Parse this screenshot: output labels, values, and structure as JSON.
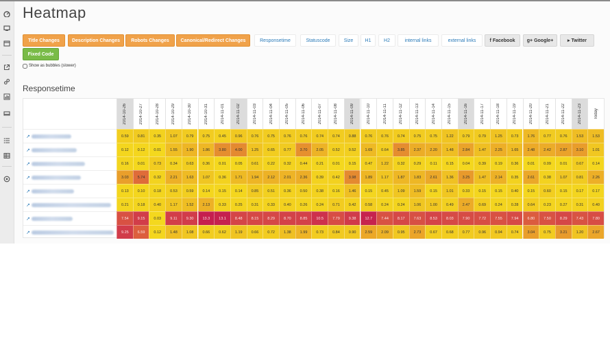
{
  "page": {
    "title": "Heatmap"
  },
  "sidebar": {
    "icons": [
      "dashboard-icon",
      "display-icon",
      "calendar-icon",
      "external-link-icon",
      "link-icon",
      "bar-chart-icon",
      "device-icon",
      "list-icon",
      "table-icon",
      "target-icon"
    ]
  },
  "buttons": {
    "row1": [
      {
        "label": "Title Changes",
        "style": "orange"
      },
      {
        "label": "Description Changes",
        "style": "orange"
      },
      {
        "label": "Robots Changes",
        "style": "orange"
      },
      {
        "label": "Canonical/Redirect Changes",
        "style": "orange"
      },
      {
        "label": "Responsetime",
        "style": "link"
      },
      {
        "label": "Statuscode",
        "style": "link"
      },
      {
        "label": "Size",
        "style": "link"
      },
      {
        "label": "H1",
        "style": "link"
      },
      {
        "label": "H2",
        "style": "link"
      },
      {
        "label": "internal links",
        "style": "link"
      },
      {
        "label": "external links",
        "style": "link"
      },
      {
        "label": "Facebook",
        "style": "gray",
        "icon": "facebook-icon"
      },
      {
        "label": "Google+",
        "style": "gray",
        "icon": "google-plus-icon"
      },
      {
        "label": "Twitter",
        "style": "gray",
        "icon": "twitter-icon"
      }
    ],
    "row2": [
      {
        "label": "Fixed Code",
        "style": "green"
      }
    ]
  },
  "options": {
    "bubbles_label": "Show as bubbles (slower)",
    "bubbles_checked": false
  },
  "section": {
    "title": "Responsetime"
  },
  "heatmap": {
    "columns": [
      "2014-10-26",
      "2014-10-27",
      "2014-10-28",
      "2014-10-29",
      "2014-10-30",
      "2014-10-31",
      "2014-11-01",
      "2014-11-02",
      "2014-11-03",
      "2014-11-04",
      "2014-11-05",
      "2014-11-06",
      "2014-11-07",
      "2014-11-08",
      "2014-11-09",
      "2014-11-10",
      "2014-11-11",
      "2014-11-12",
      "2014-11-13",
      "2014-11-14",
      "2014-11-15",
      "2014-11-16",
      "2014-11-17",
      "2014-11-18",
      "2014-11-19",
      "2014-11-20",
      "2014-11-21",
      "2014-11-22",
      "2014-11-23",
      "Today"
    ],
    "highlight_columns": [
      "2014-10-26",
      "2014-11-02",
      "2014-11-09",
      "2014-11-16",
      "2014-11-23"
    ],
    "rows": [
      {
        "values": [
          "0.59",
          "0.81",
          "0.35",
          "1.07",
          "0.79",
          "0.75",
          "0.45",
          "0.96",
          "0.76",
          "0.75",
          "0.76",
          "0.76",
          "0.74",
          "0.74",
          "0.88",
          "0.76",
          "0.76",
          "0.74",
          "0.75",
          "0.75",
          "1.22",
          "0.79",
          "0.79",
          "1.25",
          "0.73",
          "1.76",
          "0.77",
          "0.76",
          "1.53",
          "1.53"
        ]
      },
      {
        "values": [
          "0.12",
          "0.12",
          "0.01",
          "1.55",
          "1.90",
          "1.86",
          "3.80",
          "4.00",
          "1.25",
          "0.65",
          "0.77",
          "3.70",
          "2.05",
          "0.52",
          "0.52",
          "1.69",
          "0.64",
          "3.85",
          "2.37",
          "2.20",
          "1.48",
          "2.84",
          "1.47",
          "2.25",
          "1.65",
          "2.48",
          "2.42",
          "2.87",
          "3.10",
          "1.01"
        ]
      },
      {
        "values": [
          "0.16",
          "0.01",
          "0.73",
          "0.34",
          "0.63",
          "0.36",
          "0.01",
          "0.05",
          "0.61",
          "0.22",
          "0.32",
          "0.44",
          "0.21",
          "0.01",
          "0.15",
          "0.47",
          "1.22",
          "0.32",
          "0.29",
          "0.11",
          "0.15",
          "0.04",
          "0.39",
          "0.19",
          "0.36",
          "0.01",
          "0.09",
          "0.01",
          "0.67",
          "0.14"
        ]
      },
      {
        "values": [
          "3.03",
          "5.74",
          "0.32",
          "2.21",
          "1.63",
          "1.07",
          "0.36",
          "1.71",
          "1.94",
          "2.12",
          "2.01",
          "2.36",
          "0.39",
          "0.42",
          "3.98",
          "1.89",
          "1.17",
          "1.87",
          "1.83",
          "2.61",
          "1.36",
          "3.25",
          "1.47",
          "2.14",
          "0.35",
          "2.61",
          "0.38",
          "1.07",
          "0.81",
          "2.26"
        ]
      },
      {
        "values": [
          "0.13",
          "0.10",
          "0.18",
          "0.53",
          "0.59",
          "0.14",
          "0.15",
          "0.14",
          "0.85",
          "0.51",
          "0.36",
          "0.50",
          "0.38",
          "0.16",
          "1.46",
          "0.15",
          "0.45",
          "1.09",
          "1.59",
          "0.15",
          "1.01",
          "0.33",
          "0.15",
          "0.15",
          "0.40",
          "0.15",
          "0.60",
          "0.15",
          "0.17",
          "0.17"
        ]
      },
      {
        "values": [
          "0.21",
          "0.18",
          "0.40",
          "1.17",
          "1.52",
          "2.13",
          "0.33",
          "0.25",
          "0.31",
          "0.33",
          "0.40",
          "0.26",
          "0.24",
          "0.71",
          "0.42",
          "0.58",
          "0.24",
          "0.24",
          "1.06",
          "1.00",
          "0.49",
          "2.47",
          "0.69",
          "0.24",
          "0.28",
          "0.64",
          "0.23",
          "0.27",
          "0.31",
          "0.40"
        ]
      },
      {
        "values": [
          "7.54",
          "9.15",
          "0.03",
          "9.11",
          "9.30",
          "13.3",
          "13.1",
          "8.48",
          "8.15",
          "8.29",
          "8.70",
          "8.85",
          "10.5",
          "7.79",
          "9.38",
          "12.7",
          "7.44",
          "8.17",
          "7.63",
          "8.53",
          "8.03",
          "7.90",
          "7.72",
          "7.55",
          "7.94",
          "6.80",
          "7.50",
          "8.29",
          "7.43",
          "7.80"
        ]
      },
      {
        "values": [
          "9.25",
          "6.59",
          "0.12",
          "1.48",
          "1.08",
          "0.66",
          "0.62",
          "1.19",
          "0.66",
          "0.72",
          "1.38",
          "1.99",
          "0.73",
          "0.84",
          "0.90",
          "2.59",
          "2.09",
          "0.95",
          "2.73",
          "0.67",
          "0.68",
          "0.77",
          "0.96",
          "0.94",
          "0.74",
          "3.04",
          "0.75",
          "3.21",
          "1.20",
          "2.67"
        ]
      }
    ]
  }
}
